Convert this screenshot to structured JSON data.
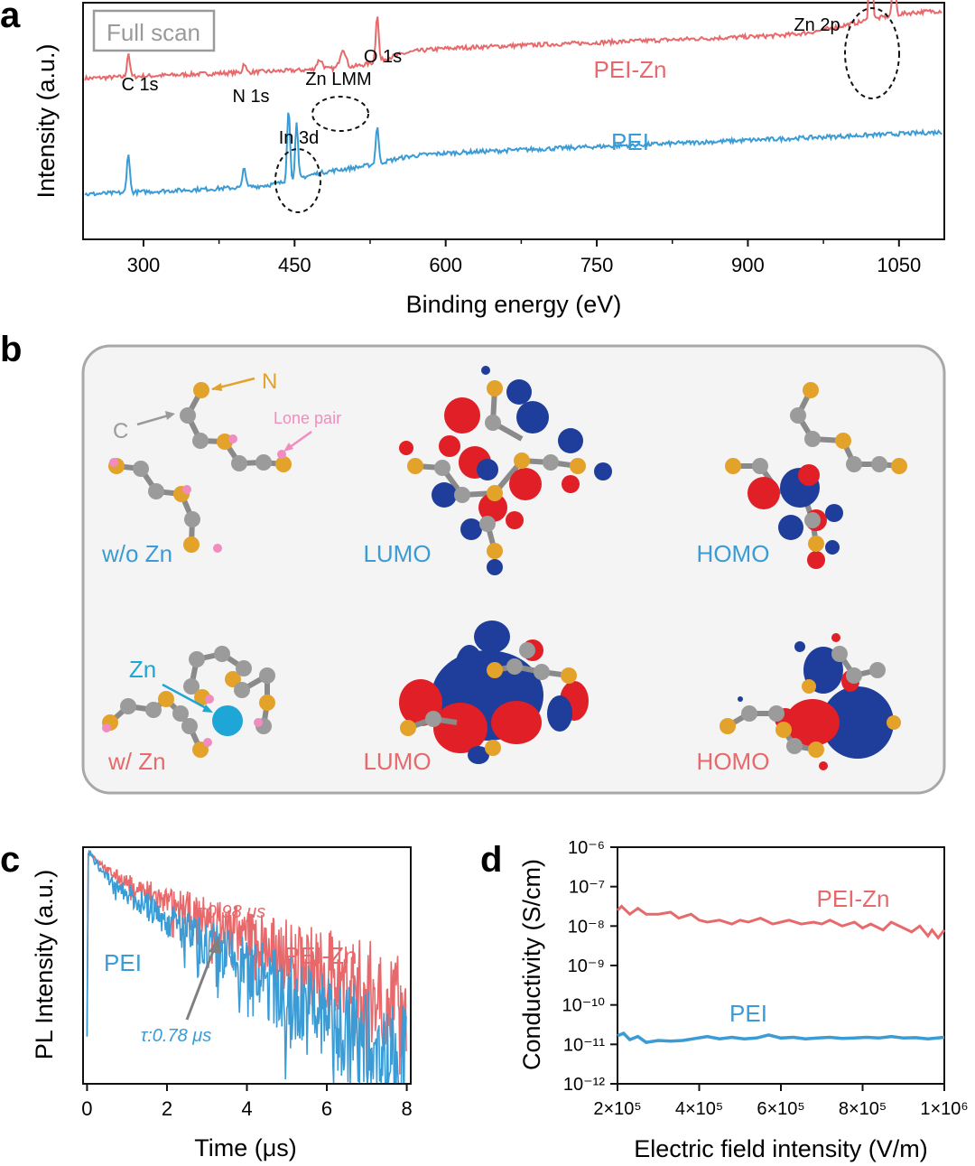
{
  "colors": {
    "pei": "#3a9bd5",
    "pei_zn": "#e8696b",
    "axis": "#111111",
    "gray": "#9a9a9a",
    "orange": "#e3a22a",
    "pink": "#f08cbf",
    "zn_atom": "#1ea6d6",
    "red_lobe": "#e01f26",
    "blue_lobe": "#1f3d9a",
    "atom_gray": "#9b9b9b"
  },
  "panels": {
    "a": "a",
    "b": "b",
    "c": "c",
    "d": "d"
  },
  "chart_data": [
    {
      "panel": "a",
      "type": "line",
      "title": "",
      "xlabel": "Binding energy (eV)",
      "ylabel": "Intensity (a.u.)",
      "xlim": [
        240,
        1095
      ],
      "ylim": [
        0,
        10
      ],
      "xticks": [
        300,
        450,
        600,
        750,
        900,
        1050
      ],
      "box_label": "Full scan",
      "series": [
        {
          "name": "PEI-Zn",
          "offset": 6.8,
          "peaks": [
            {
              "x": 285,
              "h": 1.0,
              "w": 2
            },
            {
              "x": 400,
              "h": 0.4,
              "w": 2
            },
            {
              "x": 498,
              "h": 0.8,
              "w": 4
            },
            {
              "x": 475,
              "h": 0.4,
              "w": 4
            },
            {
              "x": 532,
              "h": 2.0,
              "w": 2
            },
            {
              "x": 1022,
              "h": 4.8,
              "w": 2
            },
            {
              "x": 1045,
              "h": 2.4,
              "w": 2
            }
          ],
          "steps": [
            {
              "x": 540,
              "h": 0.7
            },
            {
              "x": 980,
              "h": 0.4
            },
            {
              "x": 1030,
              "h": 0.4
            }
          ],
          "slope": 0.0016
        },
        {
          "name": "PEI",
          "offset": 1.9,
          "peaks": [
            {
              "x": 285,
              "h": 1.7,
              "w": 2
            },
            {
              "x": 400,
              "h": 0.9,
              "w": 2
            },
            {
              "x": 444,
              "h": 3.1,
              "w": 2
            },
            {
              "x": 452,
              "h": 2.3,
              "w": 2
            },
            {
              "x": 532,
              "h": 1.6,
              "w": 2
            }
          ],
          "steps": [
            {
              "x": 455,
              "h": 0.6
            },
            {
              "x": 540,
              "h": 0.5
            }
          ],
          "slope": 0.0018
        }
      ],
      "annotations": {
        "c1s": "C 1s",
        "n1s": "N 1s",
        "znlmm": "Zn LMM",
        "o1s": "O 1s",
        "zn2p": "Zn 2p",
        "in3d": "In 3d",
        "pei_zn": "PEI-Zn",
        "pei": "PEI"
      }
    },
    {
      "panel": "c",
      "type": "line",
      "title": "",
      "xlabel": "Time (μs)",
      "ylabel": "PL Intensity (a.u.)",
      "xlim": [
        -0.1,
        8.1
      ],
      "ylim": [
        0,
        1
      ],
      "xticks": [
        0,
        2,
        4,
        6,
        8
      ],
      "series": [
        {
          "name": "PEI-Zn",
          "tau": 0.98,
          "a1": 0.35,
          "t1": 0.3,
          "a2": 0.65,
          "t2": 2.4
        },
        {
          "name": "PEI",
          "tau": 0.78,
          "a1": 0.4,
          "t1": 0.25,
          "a2": 0.6,
          "t2": 1.7
        }
      ],
      "annotations": {
        "pei_zn": "PEI-Zn",
        "pei": "PEI",
        "tau_zn": "τ:0.98 μs",
        "tau_pei": "τ:0.78 μs"
      }
    },
    {
      "panel": "d",
      "type": "line",
      "title": "",
      "xlabel": "Electric field intensity (V/m)",
      "ylabel": "Conductivity (S/cm)",
      "xlim": [
        200000,
        1000000
      ],
      "ylim_log10": [
        -12,
        -6
      ],
      "xticks": [
        "2×10⁵",
        "4×10⁵",
        "6×10⁵",
        "8×10⁵",
        "1×10⁶"
      ],
      "yticks": [
        "10⁻⁶",
        "10⁻⁷",
        "10⁻⁸",
        "10⁻⁹",
        "10⁻¹⁰",
        "10⁻¹¹",
        "10⁻¹²"
      ],
      "series": [
        {
          "name": "PEI-Zn",
          "x": [
            200000,
            210000,
            230000,
            250000,
            270000,
            300000,
            330000,
            350000,
            380000,
            400000,
            420000,
            450000,
            480000,
            500000,
            520000,
            550000,
            580000,
            600000,
            620000,
            650000,
            680000,
            700000,
            720000,
            750000,
            780000,
            800000,
            820000,
            850000,
            870000,
            900000,
            920000,
            940000,
            960000,
            970000,
            985000,
            1000000
          ],
          "y": [
            -7.6,
            -7.5,
            -7.7,
            -7.55,
            -7.7,
            -7.7,
            -7.65,
            -7.8,
            -7.7,
            -7.85,
            -7.9,
            -7.85,
            -7.95,
            -7.85,
            -7.9,
            -7.8,
            -7.95,
            -7.9,
            -7.85,
            -7.95,
            -7.9,
            -7.95,
            -7.85,
            -8.0,
            -7.9,
            -8.05,
            -7.95,
            -8.1,
            -7.9,
            -8.05,
            -8.15,
            -8.0,
            -8.25,
            -8.1,
            -8.3,
            -8.1
          ]
        },
        {
          "name": "PEI",
          "x": [
            200000,
            215000,
            230000,
            250000,
            270000,
            300000,
            330000,
            360000,
            390000,
            420000,
            450000,
            480000,
            510000,
            540000,
            570000,
            600000,
            630000,
            660000,
            690000,
            720000,
            750000,
            780000,
            810000,
            840000,
            870000,
            900000,
            930000,
            960000,
            1000000
          ],
          "y": [
            -10.78,
            -10.72,
            -10.88,
            -10.8,
            -10.95,
            -10.9,
            -10.92,
            -10.9,
            -10.85,
            -10.8,
            -10.86,
            -10.82,
            -10.86,
            -10.84,
            -10.76,
            -10.84,
            -10.82,
            -10.86,
            -10.84,
            -10.82,
            -10.85,
            -10.84,
            -10.82,
            -10.84,
            -10.8,
            -10.84,
            -10.83,
            -10.86,
            -10.82
          ]
        }
      ],
      "annotations": {
        "pei_zn": "PEI-Zn",
        "pei": "PEI"
      }
    }
  ],
  "diagram_b": {
    "atom_labels": {
      "n": "N",
      "c": "C",
      "lone_pair": "Lone pair",
      "zn": "Zn"
    },
    "row_labels": {
      "wo_zn": "w/o Zn",
      "w_zn": "w/ Zn",
      "lumo1": "LUMO",
      "homo1": "HOMO",
      "lumo2": "LUMO",
      "homo2": "HOMO"
    }
  }
}
